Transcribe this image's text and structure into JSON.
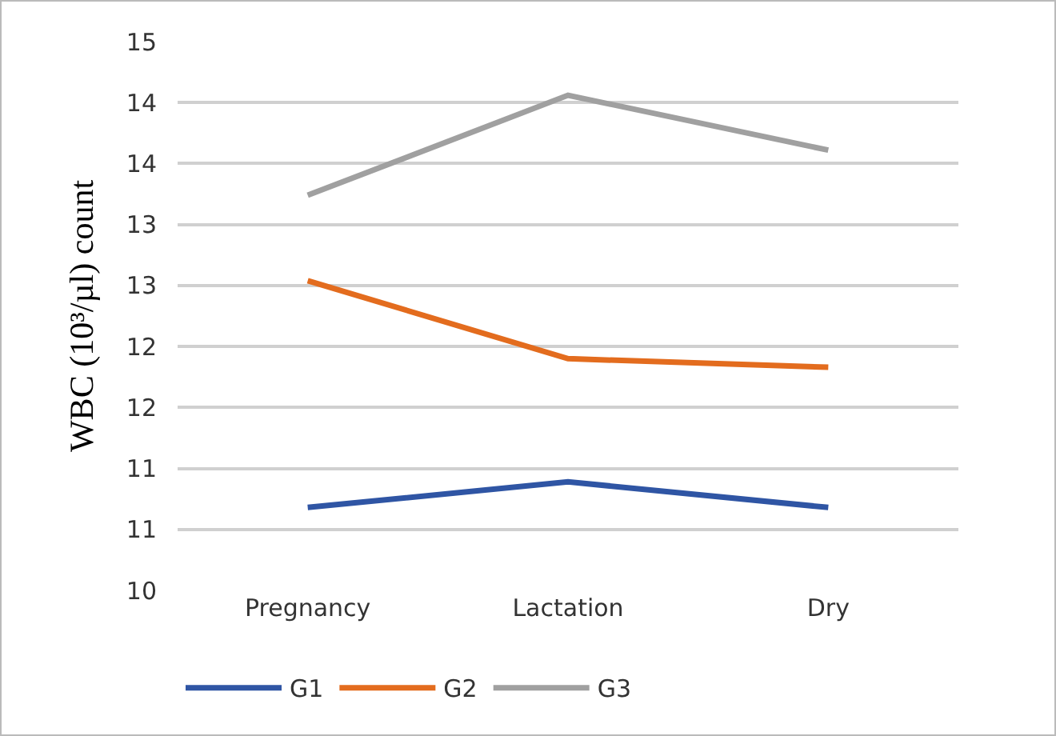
{
  "chart_data": {
    "type": "line",
    "ylabel": "WBC (10³/µl) count",
    "categories": [
      "Pregnancy",
      "Lactation",
      "Dry"
    ],
    "series": [
      {
        "name": "G1",
        "color": "#2f55a4",
        "values": [
          10.68,
          10.89,
          10.68
        ]
      },
      {
        "name": "G2",
        "color": "#e36c1e",
        "values": [
          12.54,
          11.9,
          11.83
        ]
      },
      {
        "name": "G3",
        "color": "#a0a0a0",
        "values": [
          13.24,
          14.06,
          13.61
        ]
      }
    ],
    "ylim": [
      10,
      14.5
    ],
    "yticks": [
      10,
      {
        "value": 10.5,
        "label": "11"
      },
      11,
      {
        "value": 11.5,
        "label": "12"
      },
      12,
      {
        "value": 12.5,
        "label": "13"
      },
      13,
      {
        "value": 13.5,
        "label": "14"
      },
      14,
      {
        "value": 14.5,
        "label": "15"
      }
    ],
    "grid": "y",
    "legend": "bottom",
    "marker": "none",
    "line_style": "solid"
  }
}
